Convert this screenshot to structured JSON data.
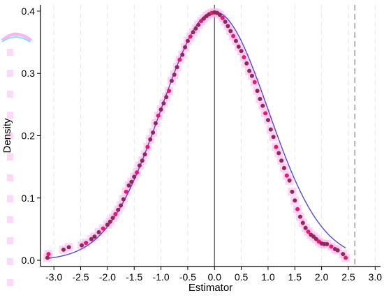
{
  "chart_data": {
    "type": "scatter",
    "title": "",
    "xlabel": "Estimator",
    "ylabel": "Density",
    "xlim": [
      -3.25,
      3.1
    ],
    "ylim": [
      -0.01,
      0.41
    ],
    "xticks": [
      -3.0,
      -2.5,
      -2.0,
      -1.5,
      -1.0,
      -0.5,
      0.0,
      0.5,
      1.0,
      1.5,
      2.0,
      2.5,
      3.0
    ],
    "xtick_labels": [
      "-3.0",
      "-2.5",
      "-2.0",
      "-1.5",
      "-1.0",
      "-0.5",
      "0.0",
      "0.5",
      "1.0",
      "1.5",
      "2.0",
      "2.5",
      "3.0"
    ],
    "yticks": [
      0.0,
      0.1,
      0.2,
      0.3,
      0.4
    ],
    "ytick_labels": [
      "0.0",
      "0.1",
      "0.2",
      "0.3",
      "0.4"
    ],
    "grid": "vertical dashed",
    "reference_lines": [
      {
        "x": 0.0,
        "style": "solid",
        "color": "#555555"
      },
      {
        "x": 2.62,
        "style": "dashed",
        "color": "#888888"
      }
    ],
    "series": [
      {
        "type": "scatter",
        "color": "#8e2a55",
        "highlight_color": "#e8186a",
        "halo_color": "#ffb3f0",
        "x": [
          -3.12,
          -3.1,
          -2.82,
          -2.72,
          -2.48,
          -2.4,
          -2.3,
          -2.24,
          -2.16,
          -2.08,
          -2.0,
          -1.95,
          -1.9,
          -1.85,
          -1.8,
          -1.75,
          -1.7,
          -1.65,
          -1.6,
          -1.55,
          -1.5,
          -1.45,
          -1.4,
          -1.35,
          -1.3,
          -1.25,
          -1.2,
          -1.15,
          -1.1,
          -1.05,
          -1.0,
          -0.95,
          -0.9,
          -0.85,
          -0.8,
          -0.75,
          -0.7,
          -0.65,
          -0.6,
          -0.55,
          -0.5,
          -0.45,
          -0.4,
          -0.35,
          -0.3,
          -0.25,
          -0.2,
          -0.15,
          -0.1,
          -0.05,
          0.0,
          0.05,
          0.1,
          0.15,
          0.2,
          0.25,
          0.3,
          0.35,
          0.4,
          0.45,
          0.5,
          0.55,
          0.6,
          0.65,
          0.7,
          0.75,
          0.8,
          0.85,
          0.9,
          0.95,
          1.0,
          1.05,
          1.1,
          1.15,
          1.2,
          1.25,
          1.3,
          1.35,
          1.4,
          1.45,
          1.5,
          1.55,
          1.6,
          1.65,
          1.7,
          1.75,
          1.8,
          1.85,
          1.9,
          1.95,
          2.0,
          2.05,
          2.1,
          2.18,
          2.25,
          2.3,
          2.4,
          2.45
        ],
        "y": [
          0.004,
          0.01,
          0.017,
          0.021,
          0.024,
          0.028,
          0.034,
          0.038,
          0.045,
          0.051,
          0.057,
          0.062,
          0.068,
          0.074,
          0.081,
          0.088,
          0.098,
          0.11,
          0.12,
          0.126,
          0.134,
          0.141,
          0.152,
          0.16,
          0.17,
          0.182,
          0.194,
          0.205,
          0.22,
          0.232,
          0.242,
          0.252,
          0.262,
          0.272,
          0.288,
          0.298,
          0.31,
          0.322,
          0.33,
          0.342,
          0.352,
          0.359,
          0.366,
          0.372,
          0.378,
          0.384,
          0.388,
          0.392,
          0.395,
          0.397,
          0.398,
          0.397,
          0.394,
          0.389,
          0.383,
          0.376,
          0.368,
          0.36,
          0.352,
          0.343,
          0.336,
          0.326,
          0.316,
          0.304,
          0.296,
          0.286,
          0.272,
          0.259,
          0.248,
          0.236,
          0.225,
          0.21,
          0.198,
          0.182,
          0.172,
          0.16,
          0.148,
          0.136,
          0.128,
          0.11,
          0.096,
          0.082,
          0.07,
          0.06,
          0.052,
          0.046,
          0.041,
          0.038,
          0.034,
          0.03,
          0.027,
          0.026,
          0.026,
          0.022,
          0.018,
          0.016,
          0.01,
          0.004
        ]
      },
      {
        "type": "line",
        "color": "#4d4ddb",
        "function": "standard normal density",
        "x_range": [
          -3.12,
          2.45
        ]
      }
    ]
  }
}
